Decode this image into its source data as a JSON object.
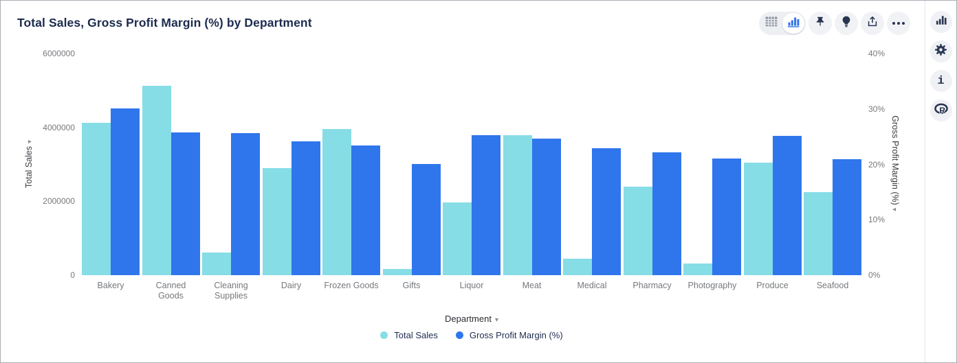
{
  "header": {
    "title": "Total Sales, Gross Profit Margin (%) by Department"
  },
  "toolbar": {
    "view_toggle": {
      "table_icon": "table-view-icon",
      "chart_icon": "chart-view-icon",
      "selected": "chart"
    },
    "buttons": [
      "pin-icon",
      "lightbulb-icon",
      "share-export-icon",
      "more-ellipsis-icon"
    ]
  },
  "side_rail": {
    "buttons": [
      "chart-panel-icon",
      "settings-gear-icon",
      "info-icon",
      "r-language-icon"
    ]
  },
  "colors": {
    "series_sales": "#86dde6",
    "series_margin": "#2f76ec",
    "title_text": "#1c2b4e",
    "tick_text": "#76787c",
    "icon_dark": "#27344f",
    "toggle_active_blue": "#3274e8"
  },
  "chart_data": {
    "type": "bar",
    "title": "Total Sales, Gross Profit Margin (%) by Department",
    "xlabel": "Department",
    "categories": [
      "Bakery",
      "Canned Goods",
      "Cleaning Supplies",
      "Dairy",
      "Frozen Goods",
      "Gifts",
      "Liquor",
      "Meat",
      "Medical",
      "Pharmacy",
      "Photography",
      "Produce",
      "Seafood"
    ],
    "series": [
      {
        "name": "Total Sales",
        "axis": "left",
        "color": "#86dde6",
        "values": [
          4130000,
          5130000,
          610000,
          2900000,
          3960000,
          170000,
          1970000,
          3790000,
          440000,
          2390000,
          320000,
          3050000,
          2250000
        ]
      },
      {
        "name": "Gross Profit Margin (%)",
        "axis": "right",
        "color": "#2f76ec",
        "values": [
          30.1,
          25.8,
          25.7,
          24.1,
          23.4,
          20.1,
          25.3,
          24.7,
          22.9,
          22.2,
          21.1,
          25.2,
          20.9
        ]
      }
    ],
    "left_axis": {
      "label": "Total Sales",
      "range": [
        0,
        6000000
      ],
      "ticks": [
        "6000000",
        "4000000",
        "2000000",
        "0"
      ]
    },
    "right_axis": {
      "label": "Gross Profit Margin (%)",
      "range": [
        0,
        40
      ],
      "ticks": [
        "40%",
        "30%",
        "20%",
        "10%",
        "0%"
      ]
    },
    "legend": [
      "Total Sales",
      "Gross Profit Margin (%)"
    ],
    "legend_position": "bottom",
    "grid": false
  }
}
